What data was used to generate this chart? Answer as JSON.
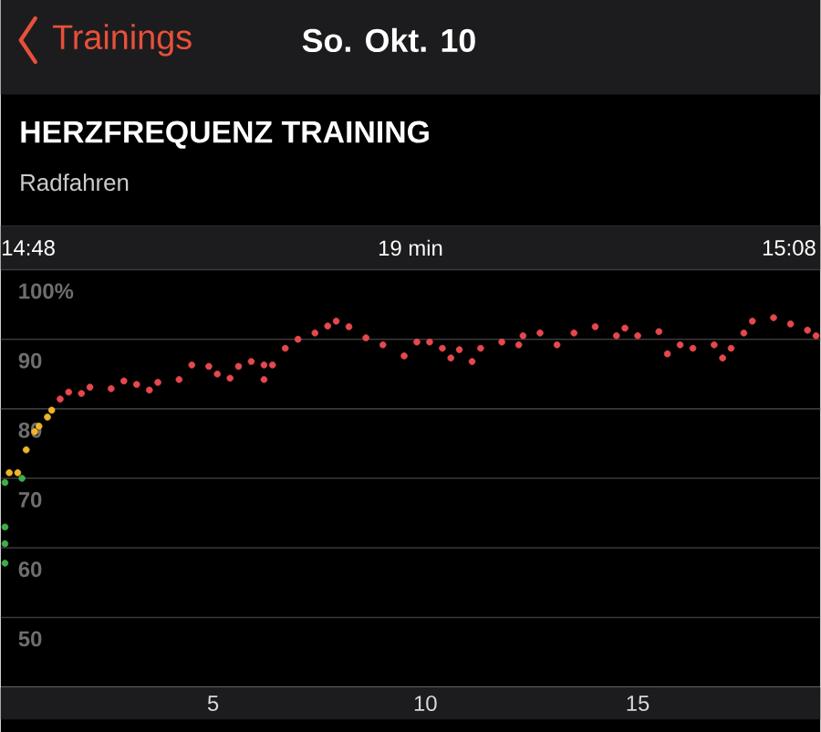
{
  "chart_data": {
    "type": "scatter",
    "title": "HERZFREQUENZ TRAINING",
    "subtitle": "Radfahren",
    "annotations": [
      "Trainings",
      "So. Okt. 10",
      "14:48",
      "19 min",
      "15:08"
    ],
    "xlim": [
      0,
      19.3
    ],
    "ylim": [
      40,
      100
    ],
    "xticks": [
      5,
      10,
      15
    ],
    "yticks": [
      50,
      60,
      70,
      80,
      90,
      {
        "value": 100,
        "label": "100%"
      }
    ],
    "grid": "y",
    "series": [
      {
        "color": "#3fae4a",
        "x": [
          0.1,
          0.1,
          0.1,
          0.1,
          0.5
        ],
        "values": [
          63,
          60.6,
          57.8,
          69.4,
          70.0
        ]
      },
      {
        "color": "#f0b429",
        "x": [
          0.2,
          0.4,
          0.6,
          0.8,
          0.9,
          1.1,
          1.2
        ],
        "values": [
          70.8,
          70.8,
          74.1,
          76.7,
          77.5,
          78.8,
          79.8
        ]
      },
      {
        "color": "#e5484d",
        "x": [
          1.4,
          1.6,
          1.9,
          2.1,
          2.6,
          2.9,
          3.2,
          3.5,
          3.7,
          4.2,
          4.5,
          4.9,
          5.1,
          5.4,
          5.6,
          5.9,
          6.2,
          6.2,
          6.4,
          6.7,
          7.0,
          7.4,
          7.7,
          7.9,
          8.2,
          8.6,
          9.0,
          9.5,
          9.8,
          10.1,
          10.4,
          10.6,
          10.8,
          11.1,
          11.3,
          11.8,
          12.2,
          12.3,
          12.7,
          13.1,
          13.5,
          14.0,
          14.5,
          14.7,
          15.0,
          15.5,
          15.7,
          16.0,
          16.3,
          16.8,
          17.0,
          17.2,
          17.5,
          17.7,
          18.2,
          18.6,
          19.0,
          19.2
        ],
        "values": [
          81.4,
          82.4,
          82.2,
          83.1,
          82.9,
          84.0,
          83.5,
          82.7,
          83.8,
          84.2,
          86.3,
          86.1,
          85.0,
          84.4,
          86.1,
          86.8,
          86.3,
          84.2,
          86.3,
          88.7,
          90.0,
          90.9,
          91.9,
          92.6,
          91.8,
          90.2,
          89.2,
          87.6,
          89.6,
          89.6,
          88.7,
          87.3,
          88.5,
          86.8,
          88.7,
          89.6,
          89.2,
          90.5,
          90.9,
          89.2,
          90.9,
          91.8,
          90.5,
          91.6,
          90.5,
          91.1,
          87.9,
          89.2,
          88.7,
          89.2,
          87.3,
          88.7,
          90.9,
          92.6,
          93.1,
          92.2,
          91.3,
          90.5
        ]
      }
    ]
  }
}
